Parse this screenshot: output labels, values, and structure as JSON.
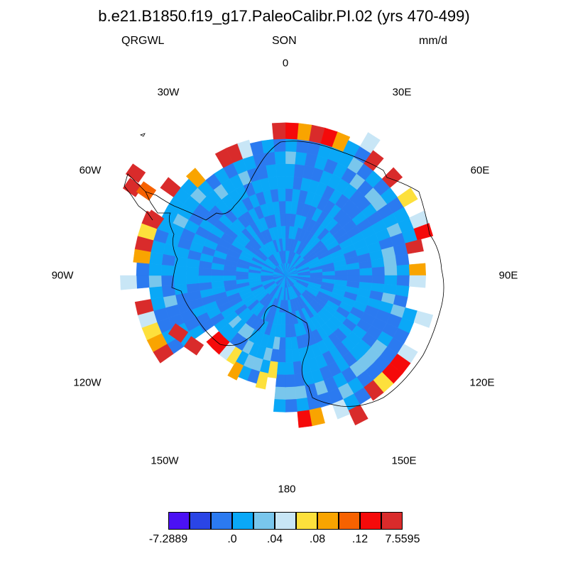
{
  "title": "b.e21.B1850.f19_g17.PaleoCalibr.PI.02 (yrs 470-499)",
  "subtitles": {
    "left": "QRGWL",
    "center": "SON",
    "right": "mm/d"
  },
  "longitude_labels": [
    {
      "name": "lon-0",
      "text": "0"
    },
    {
      "name": "lon-30e",
      "text": "30E"
    },
    {
      "name": "lon-60e",
      "text": "60E"
    },
    {
      "name": "lon-90e",
      "text": "90E"
    },
    {
      "name": "lon-120e",
      "text": "120E"
    },
    {
      "name": "lon-150e",
      "text": "150E"
    },
    {
      "name": "lon-180",
      "text": "180"
    },
    {
      "name": "lon-150w",
      "text": "150W"
    },
    {
      "name": "lon-120w",
      "text": "120W"
    },
    {
      "name": "lon-90w",
      "text": "90W"
    },
    {
      "name": "lon-60w",
      "text": "60W"
    },
    {
      "name": "lon-30w",
      "text": "30W"
    }
  ],
  "colorbar": {
    "colors": [
      "#4b11f4",
      "#2a45e6",
      "#2b7af0",
      "#0aa8f7",
      "#79c6ec",
      "#c8e6f6",
      "#fde03c",
      "#f9a400",
      "#f76200",
      "#f50a0a",
      "#d92b2b"
    ],
    "labels": [
      "-7.2889",
      ".0",
      ".04",
      ".08",
      ".12",
      "7.5595"
    ]
  },
  "map_colors": {
    "ocean_dark": "#2b7af0",
    "ocean_light": "#0aa8f7",
    "pale": "#79c6ec",
    "very_pale": "#c8e6f6",
    "yellow": "#fde03c",
    "orange": "#f9a400",
    "dark_orange": "#f76200",
    "red": "#f50a0a",
    "dark_red": "#d92b2b",
    "coast": "#000000"
  }
}
